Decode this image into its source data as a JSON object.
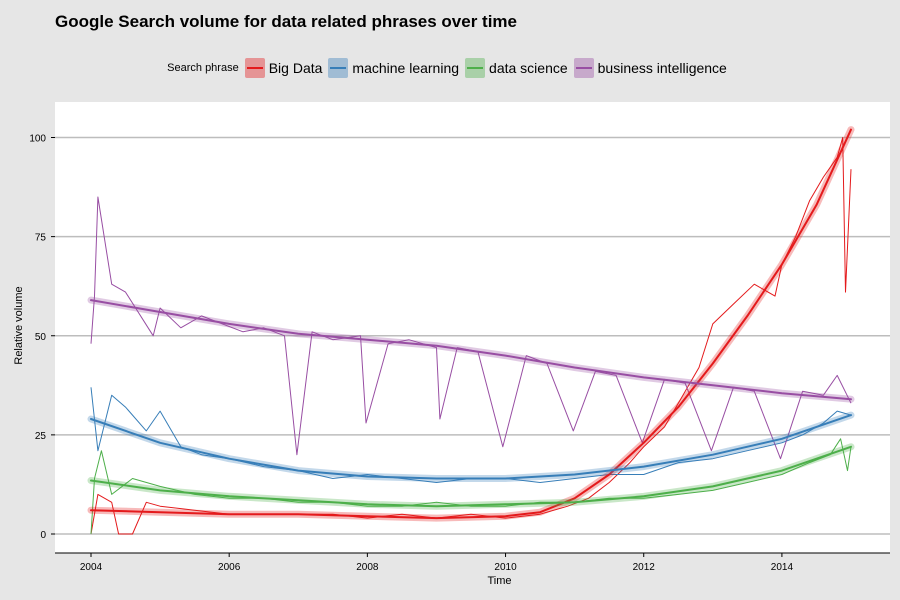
{
  "chart_data": {
    "type": "line",
    "title": "Google Search volume for data related phrases over time",
    "xlabel": "Time",
    "ylabel": "Relative volume",
    "xlim": [
      2004,
      2015
    ],
    "ylim": [
      0,
      105
    ],
    "x_ticks": [
      "2004",
      "2006",
      "2008",
      "2010",
      "2012",
      "2014"
    ],
    "y_ticks": [
      "0",
      "25",
      "50",
      "75",
      "100"
    ],
    "grid": "horizontal",
    "legend": {
      "title": "Search phrase",
      "position": "top"
    },
    "series": [
      {
        "name": "Big Data",
        "color": "#e41a1c",
        "x": [
          2004.0,
          2004.1,
          2004.3,
          2004.4,
          2004.6,
          2004.8,
          2005.0,
          2005.5,
          2006.0,
          2006.5,
          2007.0,
          2007.5,
          2008.0,
          2008.5,
          2009.0,
          2009.5,
          2010.0,
          2010.5,
          2010.9,
          2011.2,
          2011.5,
          2011.8,
          2012.0,
          2012.3,
          2012.5,
          2012.8,
          2013.0,
          2013.3,
          2013.6,
          2013.9,
          2014.0,
          2014.2,
          2014.4,
          2014.6,
          2014.8,
          2014.88,
          2014.92,
          2015.0
        ],
        "values": [
          0,
          10,
          8,
          0,
          0,
          8,
          7,
          6,
          5,
          5,
          5,
          5,
          4,
          5,
          4,
          5,
          4,
          5,
          7,
          9,
          13,
          18,
          22,
          27,
          33,
          42,
          53,
          58,
          63,
          60,
          68,
          75,
          84,
          90,
          95,
          100,
          61,
          92
        ]
      },
      {
        "name": "machine learning",
        "color": "#377eb8",
        "x": [
          2004.0,
          2004.1,
          2004.3,
          2004.5,
          2004.8,
          2005.0,
          2005.3,
          2005.6,
          2006.0,
          2006.5,
          2007.0,
          2007.5,
          2008.0,
          2008.5,
          2009.0,
          2009.5,
          2010.0,
          2010.5,
          2011.0,
          2011.5,
          2012.0,
          2012.5,
          2013.0,
          2013.5,
          2014.0,
          2014.3,
          2014.6,
          2014.8,
          2015.0
        ],
        "values": [
          37,
          21,
          35,
          32,
          26,
          31,
          22,
          20,
          19,
          17,
          16,
          14,
          15,
          14,
          13,
          14,
          14,
          13,
          14,
          15,
          15,
          18,
          19,
          21,
          23,
          25,
          28,
          31,
          30
        ]
      },
      {
        "name": "data science",
        "color": "#4daf4a",
        "x": [
          2004.0,
          2004.05,
          2004.15,
          2004.3,
          2004.6,
          2005.0,
          2005.5,
          2006.0,
          2006.5,
          2007.0,
          2007.5,
          2008.0,
          2008.5,
          2009.0,
          2009.5,
          2010.0,
          2010.5,
          2011.0,
          2011.5,
          2012.0,
          2012.5,
          2013.0,
          2013.5,
          2014.0,
          2014.4,
          2014.7,
          2014.85,
          2014.95,
          2015.0
        ],
        "values": [
          0,
          14,
          21,
          10,
          14,
          12,
          10,
          9,
          9,
          8,
          8,
          7,
          7,
          8,
          7,
          7,
          8,
          8,
          9,
          9,
          10,
          11,
          13,
          15,
          18,
          20,
          24,
          16,
          22
        ]
      },
      {
        "name": "business intelligence",
        "color": "#984ea3",
        "x": [
          2004.0,
          2004.05,
          2004.1,
          2004.3,
          2004.5,
          2004.9,
          2005.0,
          2005.3,
          2005.6,
          2005.9,
          2006.2,
          2006.5,
          2006.8,
          2006.98,
          2007.2,
          2007.5,
          2007.9,
          2007.98,
          2008.3,
          2008.6,
          2009.0,
          2009.05,
          2009.3,
          2009.6,
          2009.96,
          2010.3,
          2010.6,
          2010.98,
          2011.3,
          2011.6,
          2011.98,
          2012.3,
          2012.6,
          2012.98,
          2013.3,
          2013.6,
          2013.98,
          2014.3,
          2014.6,
          2014.8,
          2015.0
        ],
        "values": [
          48,
          60,
          85,
          63,
          61,
          50,
          57,
          52,
          55,
          53,
          51,
          52,
          50,
          20,
          51,
          49,
          50,
          28,
          48,
          49,
          47,
          29,
          47,
          46,
          22,
          45,
          43,
          26,
          41,
          40,
          23,
          39,
          38,
          21,
          37,
          36,
          19,
          36,
          35,
          40,
          33
        ]
      }
    ],
    "trend": {
      "Big Data": {
        "x": [
          2004,
          2005,
          2006,
          2007,
          2008,
          2009,
          2010,
          2010.5,
          2011,
          2011.5,
          2012,
          2012.5,
          2013,
          2013.5,
          2014,
          2014.5,
          2015
        ],
        "values": [
          6,
          5.5,
          5,
          5,
          4.5,
          4,
          4.5,
          5.5,
          9,
          15,
          23,
          32,
          43,
          55,
          68,
          83,
          102
        ]
      },
      "machine learning": {
        "x": [
          2004,
          2005,
          2006,
          2007,
          2008,
          2009,
          2010,
          2011,
          2012,
          2013,
          2014,
          2015
        ],
        "values": [
          29,
          23,
          19,
          16,
          14.5,
          14,
          14,
          15,
          17,
          20,
          24,
          30
        ]
      },
      "data science": {
        "x": [
          2004,
          2005,
          2006,
          2007,
          2008,
          2009,
          2010,
          2011,
          2012,
          2013,
          2014,
          2015
        ],
        "values": [
          13.5,
          11,
          9.5,
          8.5,
          7.5,
          7,
          7.5,
          8,
          9.5,
          12,
          16,
          22
        ]
      },
      "business intelligence": {
        "x": [
          2004,
          2005,
          2006,
          2007,
          2008,
          2009,
          2010,
          2011,
          2012,
          2013,
          2014,
          2015
        ],
        "values": [
          59,
          56,
          53,
          50.5,
          49,
          47.5,
          45,
          42,
          39.5,
          37.5,
          35.5,
          34
        ]
      }
    }
  }
}
